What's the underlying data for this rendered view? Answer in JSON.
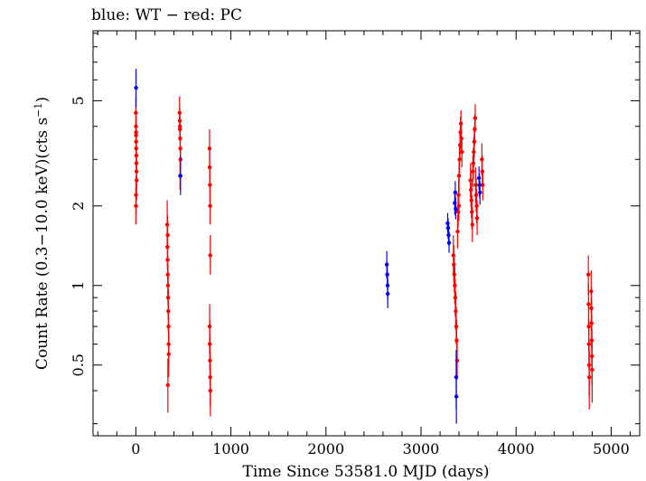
{
  "chart_data": {
    "type": "scatter",
    "title": "blue: WT − red: PC",
    "xlabel": "Time Since 53581.0 MJD (days)",
    "ylabel": "Count Rate (0.3−10.0 keV)(cts s",
    "ylabel_sup": "−1",
    "ylabel_end": ")",
    "x_scale": "linear",
    "y_scale": "log",
    "xlim": [
      -450,
      5300
    ],
    "ylim": [
      0.27,
      9.2
    ],
    "x_ticks": [
      0,
      1000,
      2000,
      3000,
      4000,
      5000
    ],
    "x_tick_labels": [
      "0",
      "1000",
      "2000",
      "3000",
      "4000",
      "5000"
    ],
    "y_ticks": [
      0.5,
      1,
      2,
      5
    ],
    "y_tick_labels": [
      "0.5",
      "1",
      "2",
      "5"
    ],
    "y_minor_ticks": [
      0.3,
      0.4,
      0.6,
      0.7,
      0.8,
      0.9,
      3,
      4,
      6,
      7,
      8,
      9
    ],
    "grid": false,
    "legend": "none",
    "series": [
      {
        "color": "#0000ff",
        "points": [
          [
            2,
            5.6,
            4.7,
            6.6
          ],
          [
            470,
            2.6,
            2.2,
            3.1
          ],
          [
            2640,
            1.2,
            1.06,
            1.35
          ],
          [
            2645,
            1.1,
            0.98,
            1.22
          ],
          [
            2648,
            1.0,
            0.89,
            1.12
          ],
          [
            2650,
            0.93,
            0.82,
            1.05
          ],
          [
            3280,
            1.72,
            1.58,
            1.88
          ],
          [
            3285,
            1.65,
            1.5,
            1.8
          ],
          [
            3290,
            1.55,
            1.42,
            1.7
          ],
          [
            3295,
            1.45,
            1.33,
            1.6
          ],
          [
            3355,
            2.05,
            1.85,
            2.28
          ],
          [
            3360,
            2.25,
            2.05,
            2.48
          ],
          [
            3365,
            1.95,
            1.78,
            2.15
          ],
          [
            3370,
            0.45,
            0.34,
            0.57
          ],
          [
            3372,
            0.38,
            0.3,
            0.47
          ],
          [
            3610,
            2.55,
            2.3,
            2.82
          ],
          [
            3615,
            2.4,
            2.15,
            2.65
          ],
          [
            3620,
            2.25,
            2.02,
            2.48
          ]
        ]
      },
      {
        "color": "#ff0000",
        "points": [
          [
            0,
            4.5,
            3.8,
            5.2
          ],
          [
            1,
            4.0,
            3.4,
            4.6
          ],
          [
            2,
            3.7,
            3.2,
            4.3
          ],
          [
            3,
            3.5,
            3.0,
            4.0
          ],
          [
            4,
            3.3,
            2.8,
            3.8
          ],
          [
            5,
            3.1,
            2.7,
            3.6
          ],
          [
            6,
            2.9,
            2.5,
            3.4
          ],
          [
            7,
            2.7,
            2.3,
            3.2
          ],
          [
            8,
            2.5,
            2.1,
            3.0
          ],
          [
            2,
            2.2,
            1.85,
            2.6
          ],
          [
            1,
            2.0,
            1.7,
            2.35
          ],
          [
            3,
            3.8,
            3.3,
            4.4
          ],
          [
            330,
            1.7,
            1.4,
            2.1
          ],
          [
            332,
            1.4,
            1.15,
            1.7
          ],
          [
            334,
            1.25,
            1.05,
            1.5
          ],
          [
            336,
            1.1,
            0.92,
            1.3
          ],
          [
            338,
            1.0,
            0.84,
            1.2
          ],
          [
            340,
            0.9,
            0.75,
            1.08
          ],
          [
            342,
            0.8,
            0.66,
            0.96
          ],
          [
            344,
            0.7,
            0.58,
            0.84
          ],
          [
            345,
            0.6,
            0.5,
            0.72
          ],
          [
            346,
            0.55,
            0.45,
            0.67
          ],
          [
            337,
            0.42,
            0.33,
            0.53
          ],
          [
            335,
            1.55,
            1.3,
            1.85
          ],
          [
            460,
            4.5,
            4.0,
            5.2
          ],
          [
            462,
            4.2,
            3.8,
            4.7
          ],
          [
            464,
            3.9,
            3.5,
            4.4
          ],
          [
            466,
            3.6,
            3.2,
            4.0
          ],
          [
            468,
            3.3,
            2.9,
            3.7
          ],
          [
            470,
            3.0,
            2.7,
            3.4
          ],
          [
            465,
            2.6,
            2.3,
            2.95
          ],
          [
            463,
            4.0,
            3.6,
            4.5
          ],
          [
            775,
            3.3,
            2.8,
            3.9
          ],
          [
            777,
            2.8,
            2.4,
            3.3
          ],
          [
            779,
            2.4,
            2.05,
            2.8
          ],
          [
            781,
            2.0,
            1.7,
            2.35
          ],
          [
            783,
            1.3,
            1.1,
            1.55
          ],
          [
            776,
            0.7,
            0.55,
            0.85
          ],
          [
            778,
            0.6,
            0.48,
            0.74
          ],
          [
            780,
            0.52,
            0.42,
            0.64
          ],
          [
            782,
            0.45,
            0.35,
            0.56
          ],
          [
            784,
            0.4,
            0.32,
            0.5
          ],
          [
            3340,
            1.3,
            1.1,
            1.55
          ],
          [
            3345,
            1.2,
            1.02,
            1.42
          ],
          [
            3350,
            1.1,
            0.94,
            1.3
          ],
          [
            3355,
            1.0,
            0.85,
            1.18
          ],
          [
            3360,
            0.9,
            0.76,
            1.06
          ],
          [
            3365,
            0.8,
            0.68,
            0.95
          ],
          [
            3370,
            0.7,
            0.6,
            0.83
          ],
          [
            3375,
            0.62,
            0.52,
            0.74
          ],
          [
            3380,
            0.52,
            0.44,
            0.62
          ],
          [
            3385,
            1.6,
            1.38,
            1.85
          ],
          [
            3390,
            1.9,
            1.65,
            2.2
          ],
          [
            3395,
            2.2,
            1.9,
            2.55
          ],
          [
            3400,
            2.6,
            2.25,
            3.0
          ],
          [
            3405,
            3.0,
            2.6,
            3.45
          ],
          [
            3410,
            3.4,
            2.95,
            3.9
          ],
          [
            3415,
            3.8,
            3.3,
            4.35
          ],
          [
            3420,
            4.1,
            3.6,
            4.6
          ],
          [
            3425,
            3.6,
            3.15,
            4.1
          ],
          [
            3430,
            3.2,
            2.8,
            3.65
          ],
          [
            3398,
            2.0,
            1.75,
            2.3
          ],
          [
            3520,
            2.5,
            2.15,
            2.9
          ],
          [
            3525,
            2.3,
            1.98,
            2.68
          ],
          [
            3530,
            2.1,
            1.8,
            2.45
          ],
          [
            3535,
            1.9,
            1.63,
            2.2
          ],
          [
            3540,
            1.7,
            1.46,
            1.98
          ],
          [
            3545,
            2.7,
            2.35,
            3.1
          ],
          [
            3550,
            2.9,
            2.52,
            3.32
          ],
          [
            3555,
            3.2,
            2.8,
            3.65
          ],
          [
            3560,
            3.5,
            3.05,
            4.0
          ],
          [
            3565,
            3.9,
            3.4,
            4.45
          ],
          [
            3570,
            4.3,
            3.8,
            4.85
          ],
          [
            3575,
            2.4,
            2.05,
            2.8
          ],
          [
            3580,
            2.2,
            1.9,
            2.55
          ],
          [
            3585,
            2.0,
            1.72,
            2.32
          ],
          [
            3590,
            1.8,
            1.55,
            2.1
          ],
          [
            3640,
            3.0,
            2.6,
            3.45
          ],
          [
            3645,
            2.7,
            2.35,
            3.1
          ],
          [
            3650,
            2.4,
            2.1,
            2.75
          ],
          [
            4760,
            1.1,
            0.92,
            1.3
          ],
          [
            4762,
            0.85,
            0.7,
            1.02
          ],
          [
            4764,
            0.7,
            0.57,
            0.85
          ],
          [
            4766,
            0.6,
            0.48,
            0.74
          ],
          [
            4768,
            0.5,
            0.38,
            0.63
          ],
          [
            4770,
            0.45,
            0.34,
            0.57
          ],
          [
            4790,
            0.95,
            0.78,
            1.14
          ],
          [
            4792,
            0.82,
            0.67,
            0.99
          ],
          [
            4794,
            0.72,
            0.58,
            0.88
          ],
          [
            4796,
            0.62,
            0.49,
            0.77
          ],
          [
            4798,
            0.54,
            0.42,
            0.68
          ],
          [
            4800,
            0.48,
            0.36,
            0.62
          ]
        ]
      }
    ]
  }
}
